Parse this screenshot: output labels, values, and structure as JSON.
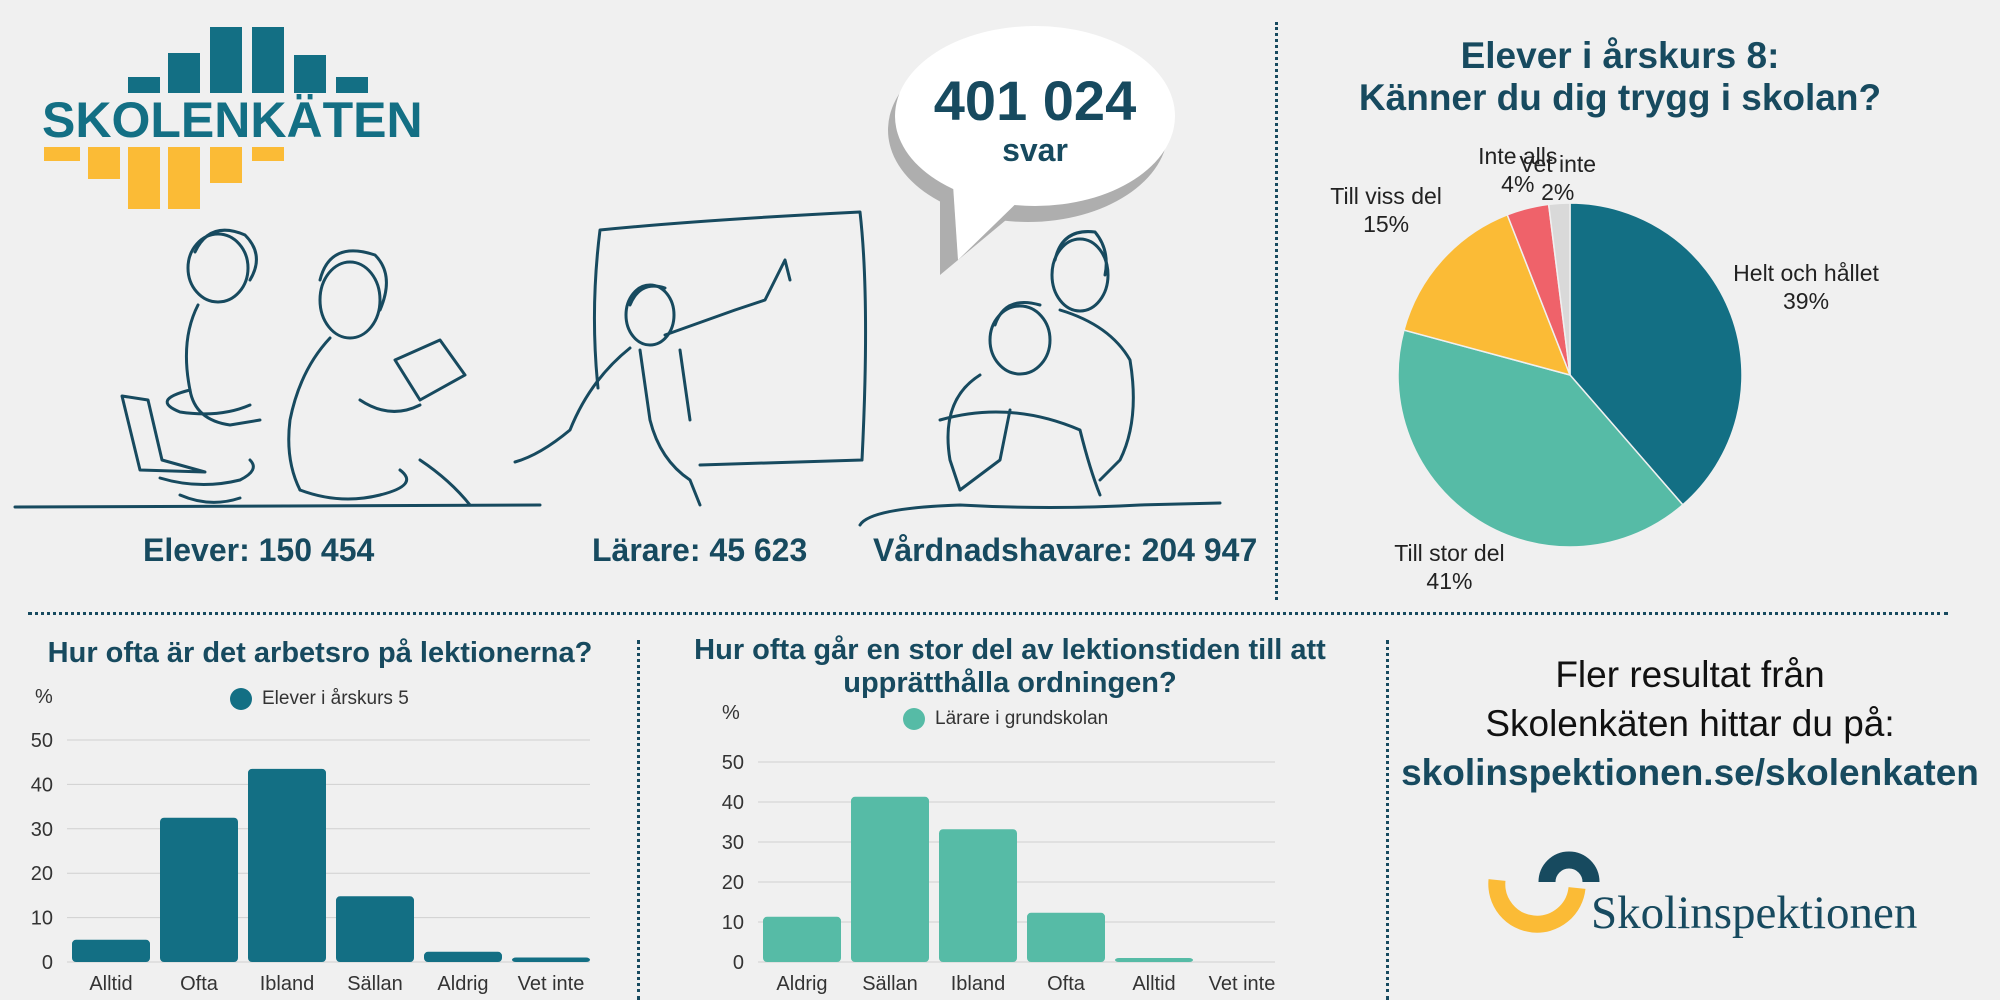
{
  "logo": {
    "text": "SKOLENKÄTEN"
  },
  "bubble": {
    "number": "401 024",
    "unit": "svar"
  },
  "counts": {
    "students": "Elever: 150 454",
    "teachers": "Lärare: 45 623",
    "guardians": "Vårdnadshavare: 204 947"
  },
  "pie": {
    "title_line1": "Elever i årskurs 8:",
    "title_line2": "Känner du dig trygg i skolan?"
  },
  "bar1": {
    "title": "Hur ofta är det arbetsro på lektionerna?",
    "unit_label": "%",
    "legend": "Elever i årskurs 5"
  },
  "bar2": {
    "title_line1": "Hur ofta går en stor del av lektionstiden till att",
    "title_line2": "upprätthålla ordningen?",
    "unit_label": "%",
    "legend": "Lärare i grundskolan"
  },
  "promo": {
    "line1": "Fler resultat från",
    "line2": "Skolenkäten hittar du på:",
    "url": "skolinspektionen.se/skolenkaten"
  },
  "brand": {
    "name": "Skolinspektionen"
  },
  "colors": {
    "dark": "#174a5f",
    "teal": "#136f84",
    "mint": "#56bba6",
    "yellow": "#fbbb36",
    "red": "#ef626a",
    "grey": "#d9d9d9"
  },
  "chart_data": [
    {
      "type": "pie",
      "title": "Elever i årskurs 8: Känner du dig trygg i skolan?",
      "slices": [
        {
          "label": "Helt och hållet",
          "value": 39,
          "display": "39%",
          "color": "#136f84"
        },
        {
          "label": "Till stor del",
          "value": 41,
          "display": "41%",
          "color": "#56bba6"
        },
        {
          "label": "Till viss del",
          "value": 15,
          "display": "15%",
          "color": "#fbbb36"
        },
        {
          "label": "Inte alls",
          "value": 4,
          "display": "4%",
          "color": "#ef626a"
        },
        {
          "label": "Vet inte",
          "value": 2,
          "display": "2%",
          "color": "#d9d9d9"
        }
      ]
    },
    {
      "type": "bar",
      "title": "Hur ofta är det arbetsro på lektionerna?",
      "ylabel": "%",
      "categories": [
        "Alltid",
        "Ofta",
        "Ibland",
        "Sällan",
        "Aldrig",
        "Vet inte"
      ],
      "series": [
        {
          "name": "Elever i årskurs 5",
          "values": [
            5,
            32.5,
            43.5,
            14.8,
            2.3,
            1
          ],
          "color": "#136f84"
        }
      ],
      "yticks": [
        0,
        10,
        20,
        30,
        40,
        50
      ],
      "ylim": [
        0,
        50
      ]
    },
    {
      "type": "bar",
      "title": "Hur ofta går en stor del av lektionstiden till att upprätthålla ordningen?",
      "ylabel": "%",
      "categories": [
        "Aldrig",
        "Sällan",
        "Ibland",
        "Ofta",
        "Alltid",
        "Vet inte"
      ],
      "series": [
        {
          "name": "Lärare i grundskolan",
          "values": [
            11.3,
            41.3,
            33.2,
            12.3,
            1,
            0
          ],
          "color": "#56bba6"
        }
      ],
      "yticks": [
        0,
        10,
        20,
        30,
        40,
        50
      ],
      "ylim": [
        0,
        50
      ]
    }
  ]
}
